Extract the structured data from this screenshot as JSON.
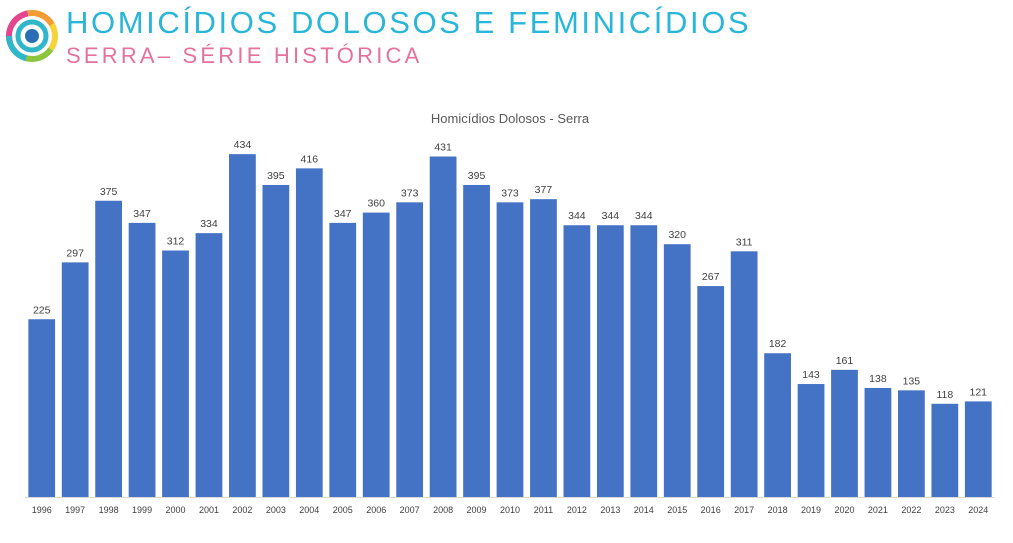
{
  "header": {
    "title": "HOMICÍDIOS DOLOSOS E FEMINICÍDIOS",
    "subtitle": "SERRA– SÉRIE HISTÓRICA",
    "title_color": "#29b6d8",
    "subtitle_color": "#e5719d"
  },
  "logo": {
    "icon": "circular-ribbon-logo-icon",
    "colors": [
      "#e4458f",
      "#f39c33",
      "#f5d33b",
      "#8cc63f",
      "#2fb6c9",
      "#2a6fb6"
    ]
  },
  "chart_data": {
    "type": "bar",
    "title": "Homicídios Dolosos - Serra",
    "xlabel": "",
    "ylabel": "",
    "categories": [
      "1996",
      "1997",
      "1998",
      "1999",
      "2000",
      "2001",
      "2002",
      "2003",
      "2004",
      "2005",
      "2006",
      "2007",
      "2008",
      "2009",
      "2010",
      "2011",
      "2012",
      "2013",
      "2014",
      "2015",
      "2016",
      "2017",
      "2018",
      "2019",
      "2020",
      "2021",
      "2022",
      "2023",
      "2024"
    ],
    "values": [
      225,
      297,
      375,
      347,
      312,
      334,
      434,
      395,
      416,
      347,
      360,
      373,
      431,
      395,
      373,
      377,
      344,
      344,
      344,
      320,
      267,
      311,
      182,
      143,
      161,
      138,
      135,
      118,
      121
    ],
    "ylim": [
      0,
      500
    ],
    "bar_color": "#4472c4",
    "grid": false,
    "data_labels": true
  }
}
